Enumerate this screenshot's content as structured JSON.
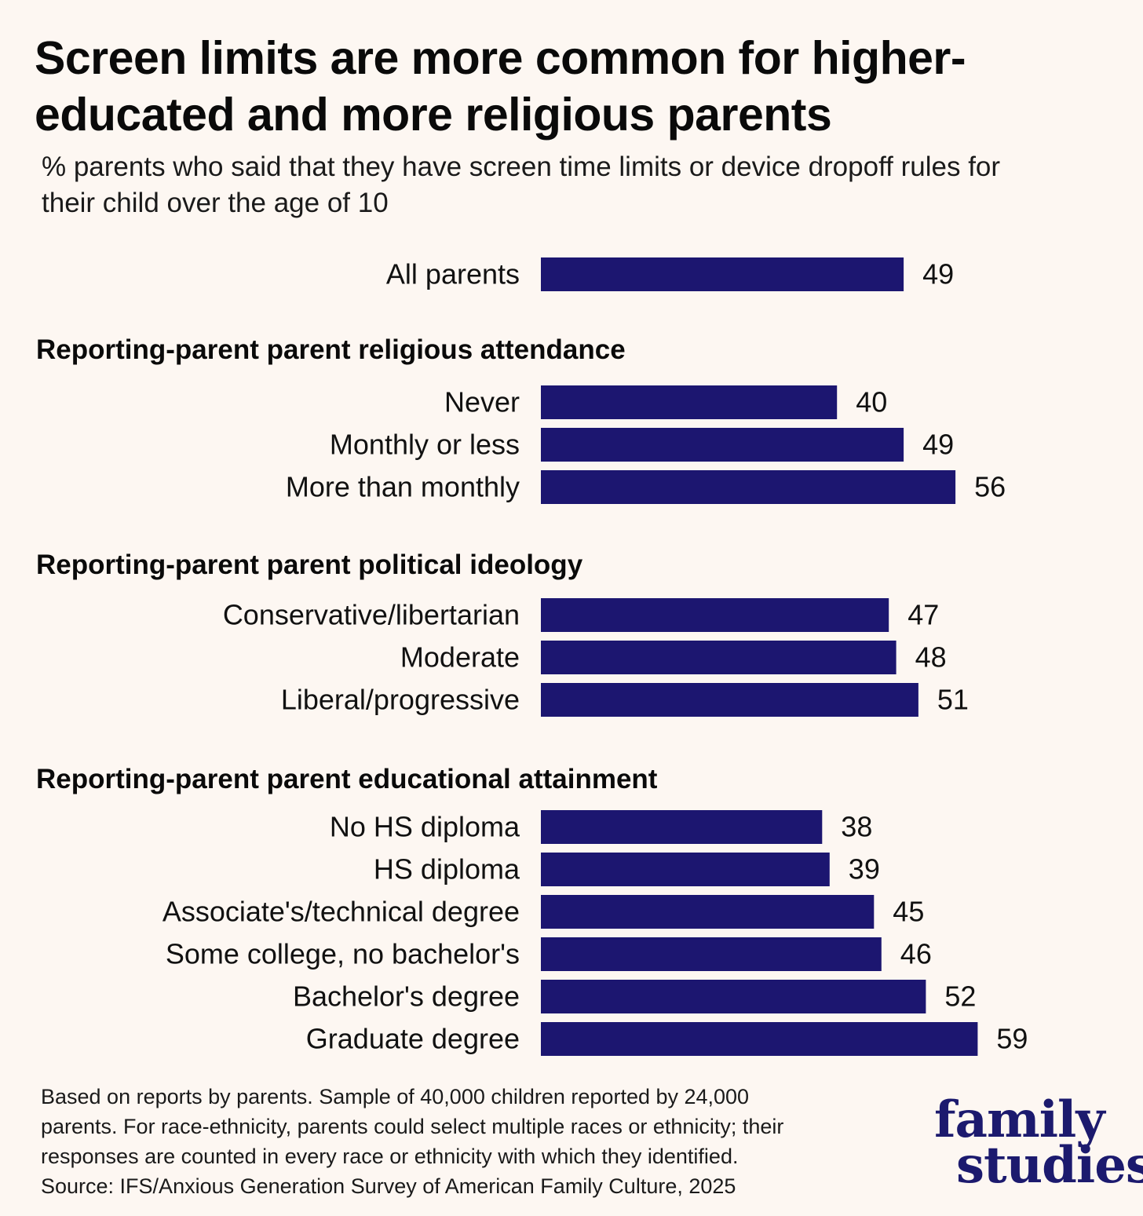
{
  "title": "Screen limits are more common for higher-educated and more religious parents",
  "title_lines": [
    "Screen limits are more common for higher-",
    "educated and more religious parents"
  ],
  "subtitle_lines": [
    "% parents who said that they have screen time limits or device dropoff rules for",
    "their child over the age of 10"
  ],
  "colors": {
    "bar": "#1c1670",
    "background": "#fdf7f2",
    "logo": "#1c1a6e"
  },
  "chart_data": {
    "type": "bar",
    "orientation": "horizontal",
    "title": "Screen limits are more common for higher-educated and more religious parents",
    "subtitle": "% parents who said that they have screen time limits or device dropoff rules for their child over the age of 10",
    "xlim": [
      0,
      100
    ],
    "grid": false,
    "legend": false,
    "data_labels": true,
    "groups": [
      {
        "name": "",
        "categories": [
          "All parents"
        ],
        "values": [
          49
        ]
      },
      {
        "name": "Reporting-parent parent religious attendance",
        "categories": [
          "Never",
          "Monthly or less",
          "More than monthly"
        ],
        "values": [
          40,
          49,
          56
        ]
      },
      {
        "name": "Reporting-parent parent political ideology",
        "categories": [
          "Conservative/libertarian",
          "Moderate",
          "Liberal/progressive"
        ],
        "values": [
          47,
          48,
          51
        ]
      },
      {
        "name": "Reporting-parent parent educational attainment",
        "categories": [
          "No HS diploma",
          "HS diploma",
          "Associate's/technical degree",
          "Some college, no bachelor's",
          "Bachelor's degree",
          "Graduate degree"
        ],
        "values": [
          38,
          39,
          45,
          46,
          52,
          59
        ]
      }
    ]
  },
  "footnote_lines": [
    "Based on reports by parents. Sample of 40,000 children reported by 24,000",
    "parents. For race-ethnicity, parents could select multiple races or ethnicity; their",
    "responses are counted in every race or ethnicity with which they identified.",
    "Source: IFS/Anxious Generation Survey of American Family Culture, 2025"
  ],
  "logo": {
    "line1": "family",
    "line2": "studies"
  }
}
